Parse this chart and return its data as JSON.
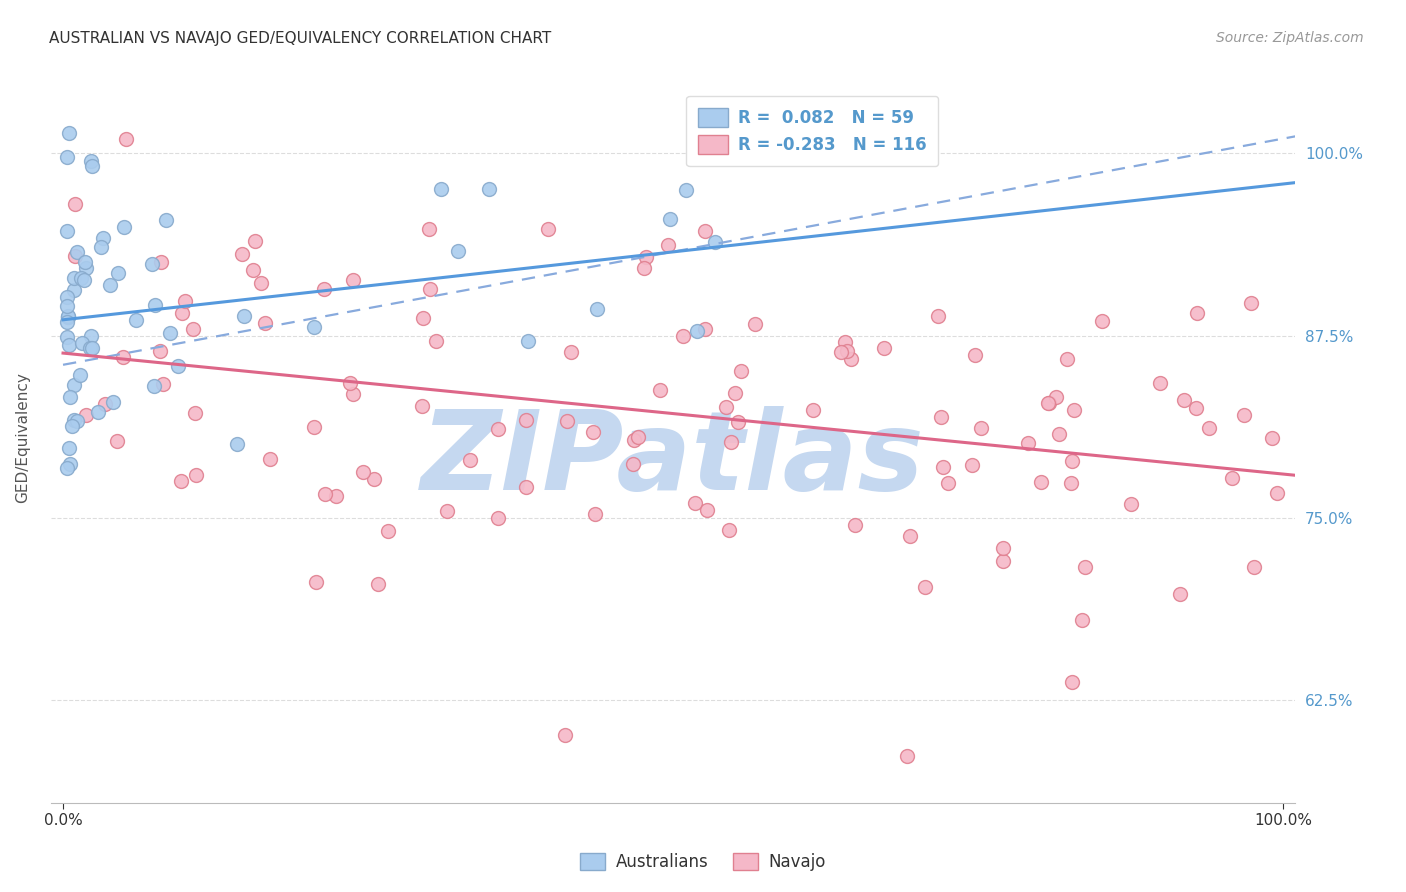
{
  "title": "AUSTRALIAN VS NAVAJO GED/EQUIVALENCY CORRELATION CHART",
  "source": "Source: ZipAtlas.com",
  "ylabel": "GED/Equivalency",
  "xlim": [
    -0.01,
    1.01
  ],
  "ylim": [
    0.555,
    1.055
  ],
  "ytick_labels": [
    "62.5%",
    "75.0%",
    "87.5%",
    "100.0%"
  ],
  "ytick_positions": [
    0.625,
    0.75,
    0.875,
    1.0
  ],
  "background_color": "#ffffff",
  "grid_color": "#dddddd",
  "australian_color": "#aaccee",
  "navajo_color": "#f5b8c8",
  "australian_edge": "#88aacc",
  "navajo_edge": "#e08090",
  "trend_aus_color": "#5599dd",
  "trend_nav_color": "#dd6688",
  "dashed_color": "#88aadd",
  "watermark_color": "#c5d8f0",
  "watermark_text": "ZIPatlas",
  "aus_R": 0.082,
  "aus_N": 59,
  "nav_R": -0.283,
  "nav_N": 116,
  "title_fontsize": 11,
  "source_fontsize": 10,
  "tick_fontsize": 11,
  "ytick_color": "#5599cc",
  "marker_size": 100,
  "marker_linewidth": 1.0
}
